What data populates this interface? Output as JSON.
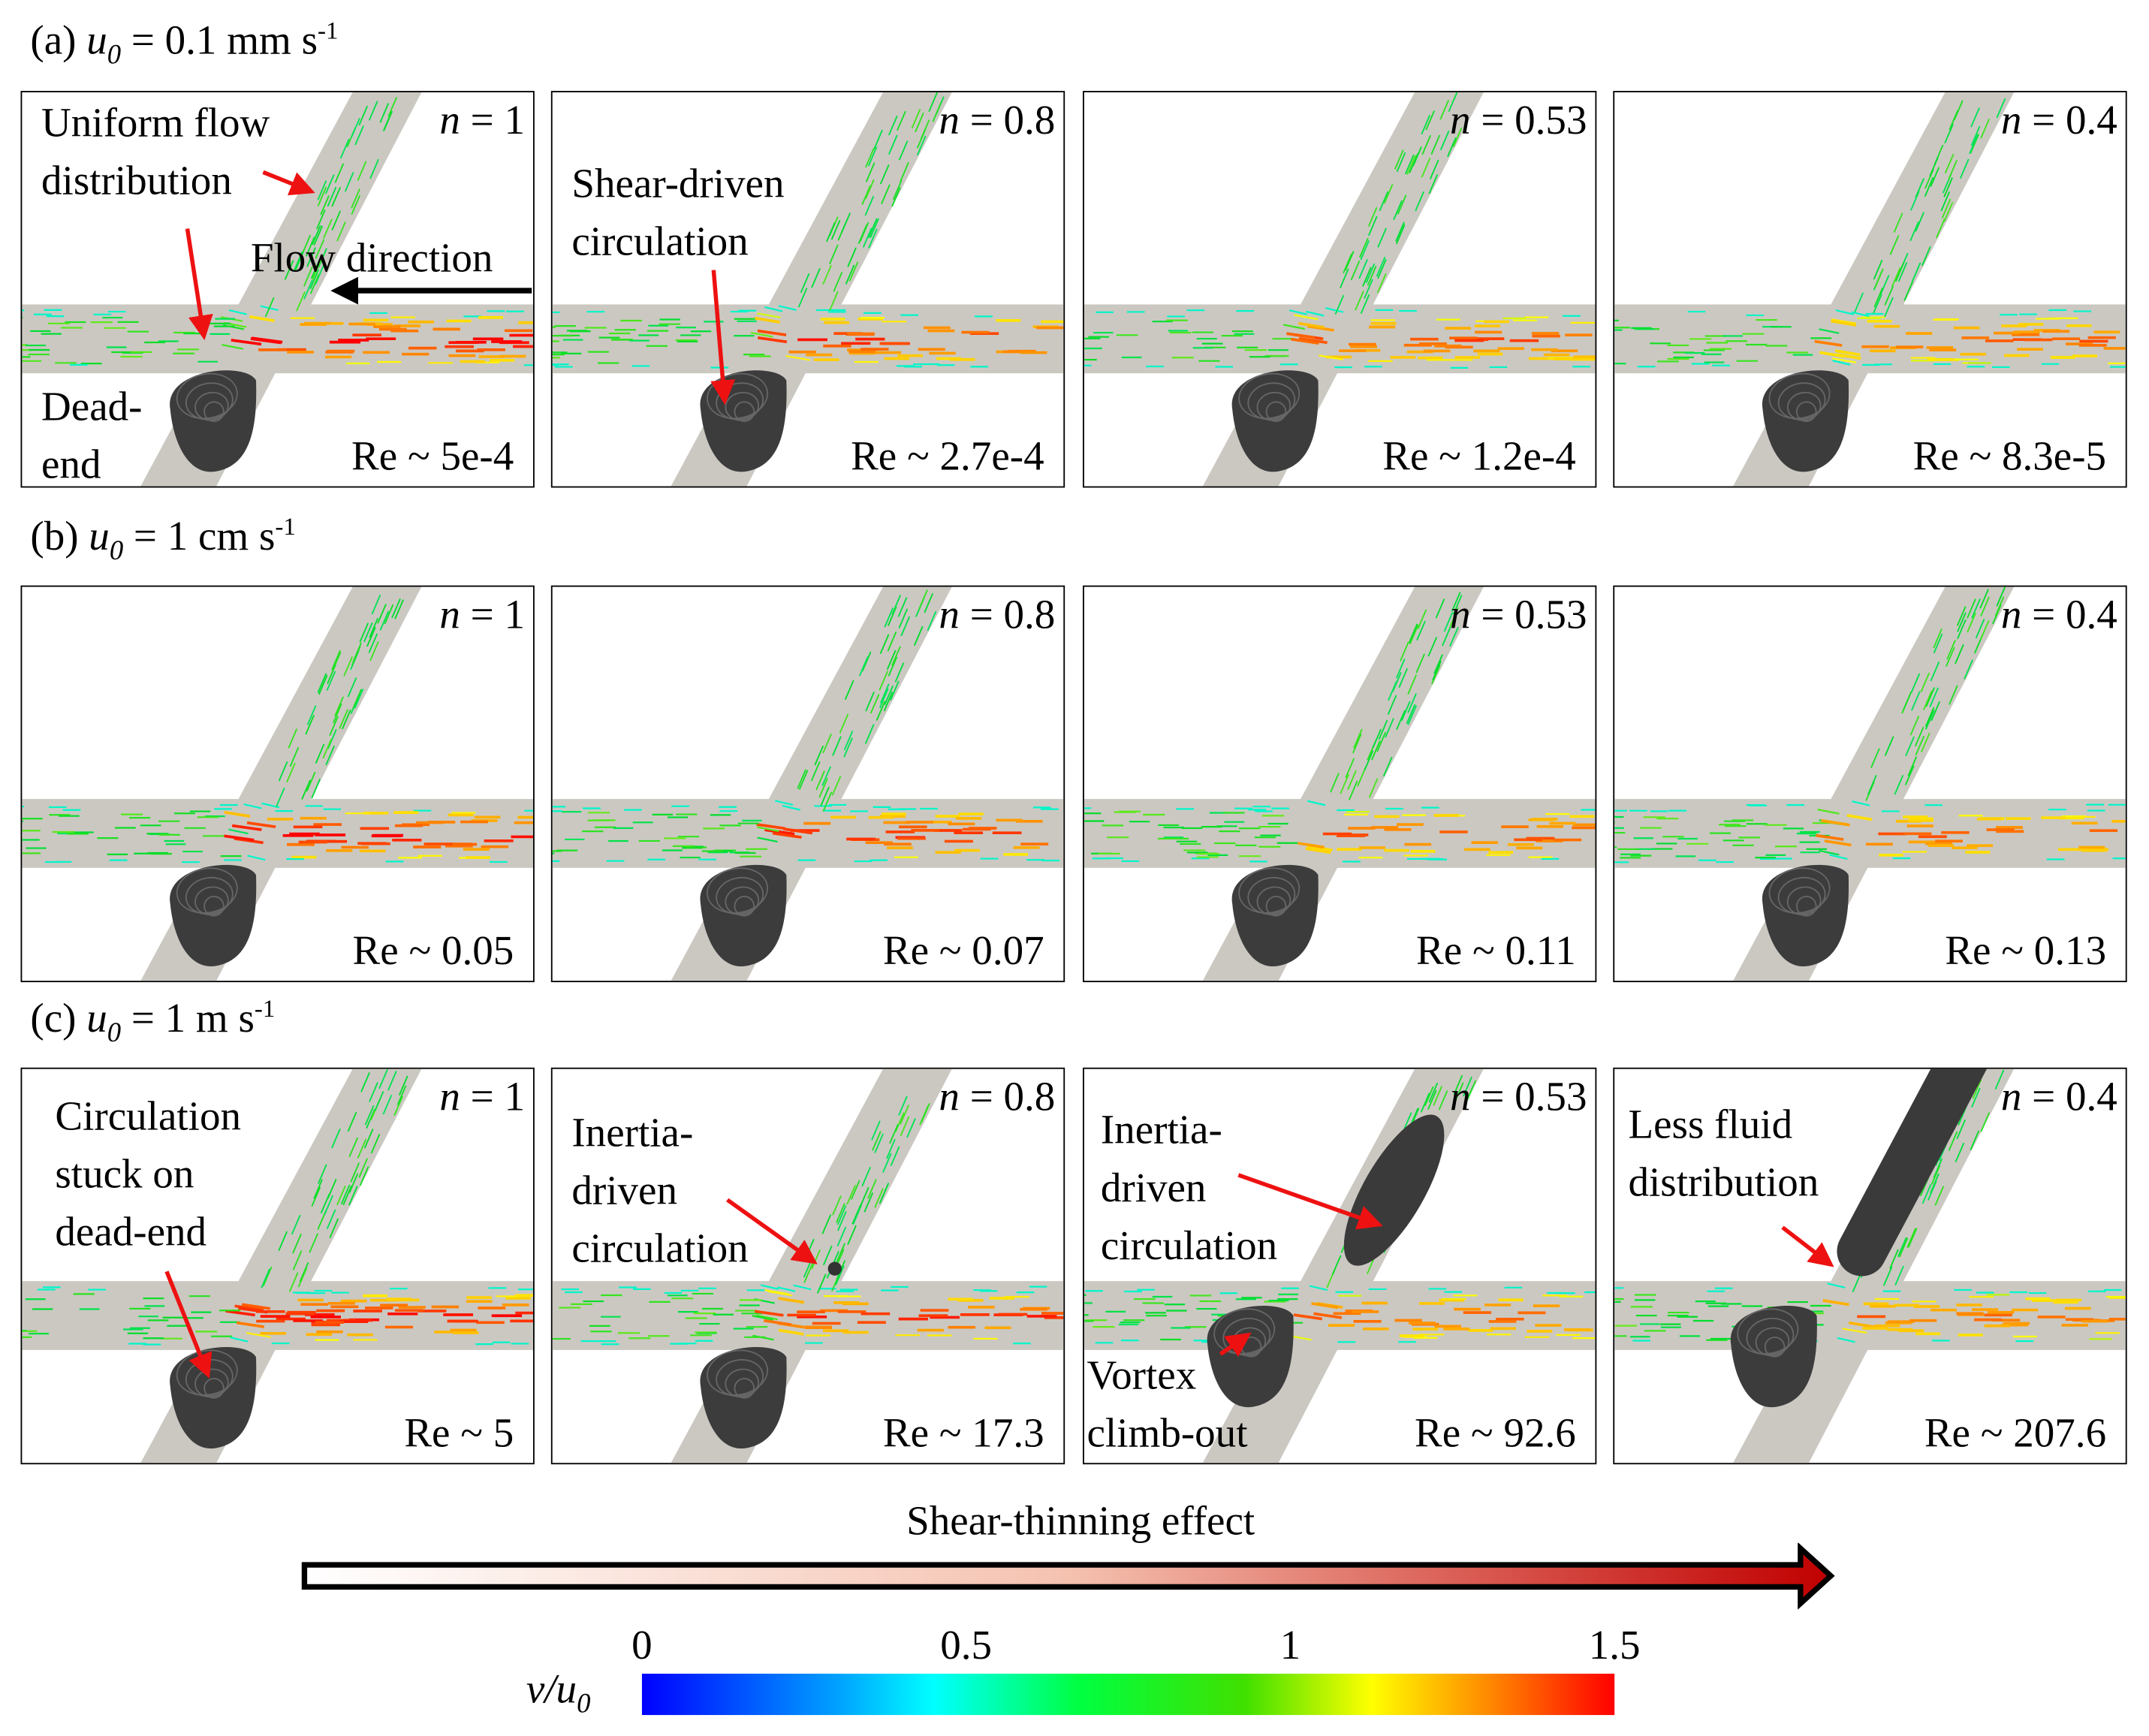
{
  "sections": [
    {
      "letter": "(a)",
      "u": "u",
      "sub": "0",
      "eq": " = 0.1 mm s",
      "sup": "-1"
    },
    {
      "letter": "(b)",
      "u": "u",
      "sub": "0",
      "eq": " = 1 cm s",
      "sup": "-1"
    },
    {
      "letter": "(c)",
      "u": "u",
      "sub": "0",
      "eq": " = 1 m s",
      "sup": "-1"
    }
  ],
  "panels": [
    {
      "n": "1",
      "re": "Re ~ 5e-4",
      "notes": [
        "Uniform flow\ndistribution",
        "Flow direction",
        "Dead-\nend"
      ]
    },
    {
      "n": "0.8",
      "re": "Re ~ 2.7e-4",
      "notes": [
        "Shear-driven\ncirculation"
      ]
    },
    {
      "n": "0.53",
      "re": "Re ~ 1.2e-4",
      "notes": []
    },
    {
      "n": "0.4",
      "re": "Re ~ 8.3e-5",
      "notes": []
    },
    {
      "n": "1",
      "re": "Re ~ 0.05",
      "notes": []
    },
    {
      "n": "0.8",
      "re": "Re ~ 0.07",
      "notes": []
    },
    {
      "n": "0.53",
      "re": "Re ~ 0.11",
      "notes": []
    },
    {
      "n": "0.4",
      "re": "Re ~ 0.13",
      "notes": []
    },
    {
      "n": "1",
      "re": "Re ~ 5",
      "notes": [
        "Circulation\nstuck on\ndead-end"
      ]
    },
    {
      "n": "0.8",
      "re": "Re ~ 17.3",
      "notes": [
        "Inertia-\ndriven\ncirculation"
      ]
    },
    {
      "n": "0.53",
      "re": "Re ~ 92.6",
      "notes": [
        "Inertia-\ndriven\ncirculation",
        "Vortex\nclimb-out"
      ]
    },
    {
      "n": "0.4",
      "re": "Re ~ 207.6",
      "notes": [
        "Less fluid\ndistribution"
      ]
    }
  ],
  "n_prefix": "n",
  "shear_arrow": {
    "label": "Shear-thinning effect"
  },
  "colorbar": {
    "label": "v/u",
    "label_sub": "0",
    "ticks": [
      "0",
      "0.5",
      "1",
      "1.5"
    ],
    "min": 0,
    "max": 1.5
  },
  "colors": {
    "channel": "#cbc8c2",
    "vortex": "#3c3c3c",
    "annotation_arrow": "#ee1111",
    "shear_start": "#ffffff",
    "shear_end": "#c00000"
  }
}
